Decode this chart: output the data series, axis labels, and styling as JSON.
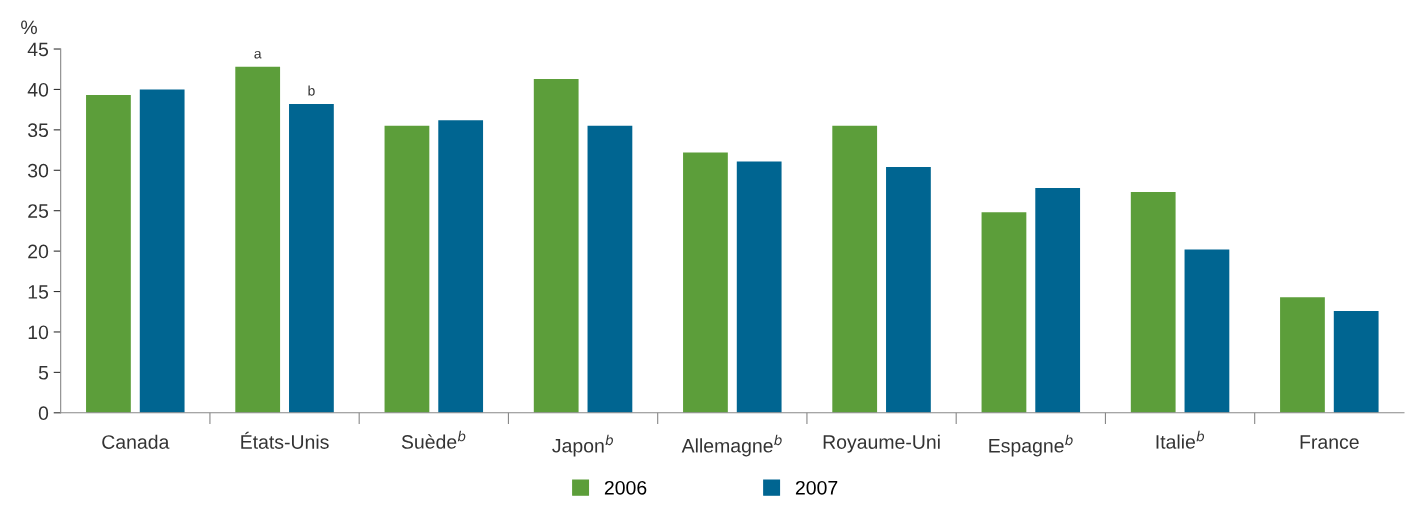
{
  "chart_data": {
    "type": "bar",
    "ylabel": "%",
    "categories": [
      "Canada",
      "États-Unis",
      "Suède$^{b}$",
      "Japon$^{b}$",
      "Allemagne$^{b}$",
      "Royaume-Uni",
      "Espagne$^{b}$",
      "Italie$^{b}$",
      "France"
    ],
    "series": [
      {
        "name": "2006",
        "color": "#5c9e3a",
        "values": [
          39.3,
          42.8,
          35.5,
          41.3,
          32.2,
          35.5,
          24.8,
          27.3,
          14.3
        ]
      },
      {
        "name": "2007",
        "color": "#006591",
        "values": [
          40.0,
          38.2,
          36.2,
          35.5,
          31.1,
          30.4,
          27.8,
          20.2,
          12.6
        ]
      }
    ],
    "ylim": [
      0,
      45
    ],
    "yticks": [
      0,
      5,
      10,
      15,
      20,
      25,
      30,
      35,
      40,
      45
    ],
    "grid": false,
    "legend": "bottom",
    "annotations": [
      {
        "text": "a",
        "x": "États-Unis",
        "y": 42.8
      },
      {
        "text": "b",
        "x": "États-Unis",
        "y": 38.2
      }
    ]
  }
}
